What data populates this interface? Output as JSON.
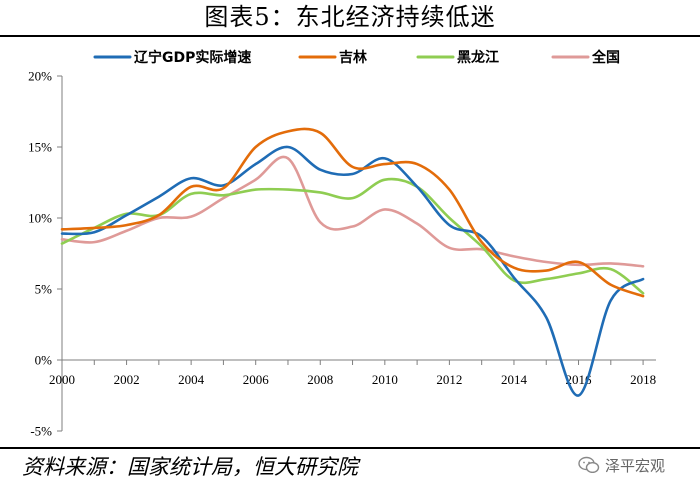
{
  "page": {
    "title": "图表5：东北经济持续低迷",
    "source": "资料来源：国家统计局，恒大研究院",
    "watermark": "泽平宏观"
  },
  "colors": {
    "liaoning": "#1f6cb5",
    "jilin": "#e36c0a",
    "heilongjiang": "#8fcd52",
    "national": "#df9a98",
    "axis": "#7f7f7f"
  },
  "chart_data": {
    "type": "line",
    "title": "东北经济持续低迷",
    "xlabel": "",
    "ylabel": "",
    "xlim": [
      2000,
      2018.4
    ],
    "ylim": [
      -5,
      20
    ],
    "yticks": [
      -5,
      0,
      5,
      10,
      15,
      20
    ],
    "ytick_labels": [
      "-5%",
      "0%",
      "5%",
      "10%",
      "15%",
      "20%"
    ],
    "xticks": [
      2000,
      2002,
      2004,
      2006,
      2008,
      2010,
      2012,
      2014,
      2016,
      2018
    ],
    "xtick_labels": [
      "2000",
      "2002",
      "2004",
      "2006",
      "2008",
      "2010",
      "2012",
      "2014",
      "2016",
      "2018"
    ],
    "grid": false,
    "legend_position": "top",
    "x": [
      2000,
      2001,
      2002,
      2003,
      2004,
      2005,
      2006,
      2007,
      2008,
      2009,
      2010,
      2011,
      2012,
      2013,
      2014,
      2015,
      2016,
      2017,
      2018
    ],
    "series": [
      {
        "key": "liaoning",
        "name": "辽宁GDP实际增速",
        "values": [
          8.9,
          9.0,
          10.2,
          11.5,
          12.8,
          12.3,
          13.8,
          15.0,
          13.4,
          13.1,
          14.2,
          12.2,
          9.5,
          8.7,
          5.8,
          3.0,
          -2.5,
          4.2,
          5.7
        ]
      },
      {
        "key": "jilin",
        "name": "吉林",
        "values": [
          9.2,
          9.3,
          9.5,
          10.2,
          12.2,
          12.1,
          15.0,
          16.1,
          16.0,
          13.6,
          13.8,
          13.8,
          12.0,
          8.3,
          6.5,
          6.3,
          6.9,
          5.3,
          4.5
        ]
      },
      {
        "key": "heilongjiang",
        "name": "黑龙江",
        "values": [
          8.2,
          9.3,
          10.3,
          10.2,
          11.7,
          11.6,
          12.0,
          12.0,
          11.8,
          11.4,
          12.7,
          12.2,
          10.0,
          8.0,
          5.6,
          5.7,
          6.1,
          6.4,
          4.7
        ]
      },
      {
        "key": "national",
        "name": "全国",
        "values": [
          8.5,
          8.3,
          9.1,
          10.0,
          10.1,
          11.4,
          12.7,
          14.2,
          9.7,
          9.4,
          10.6,
          9.6,
          7.9,
          7.8,
          7.3,
          6.9,
          6.7,
          6.8,
          6.6
        ]
      }
    ]
  }
}
